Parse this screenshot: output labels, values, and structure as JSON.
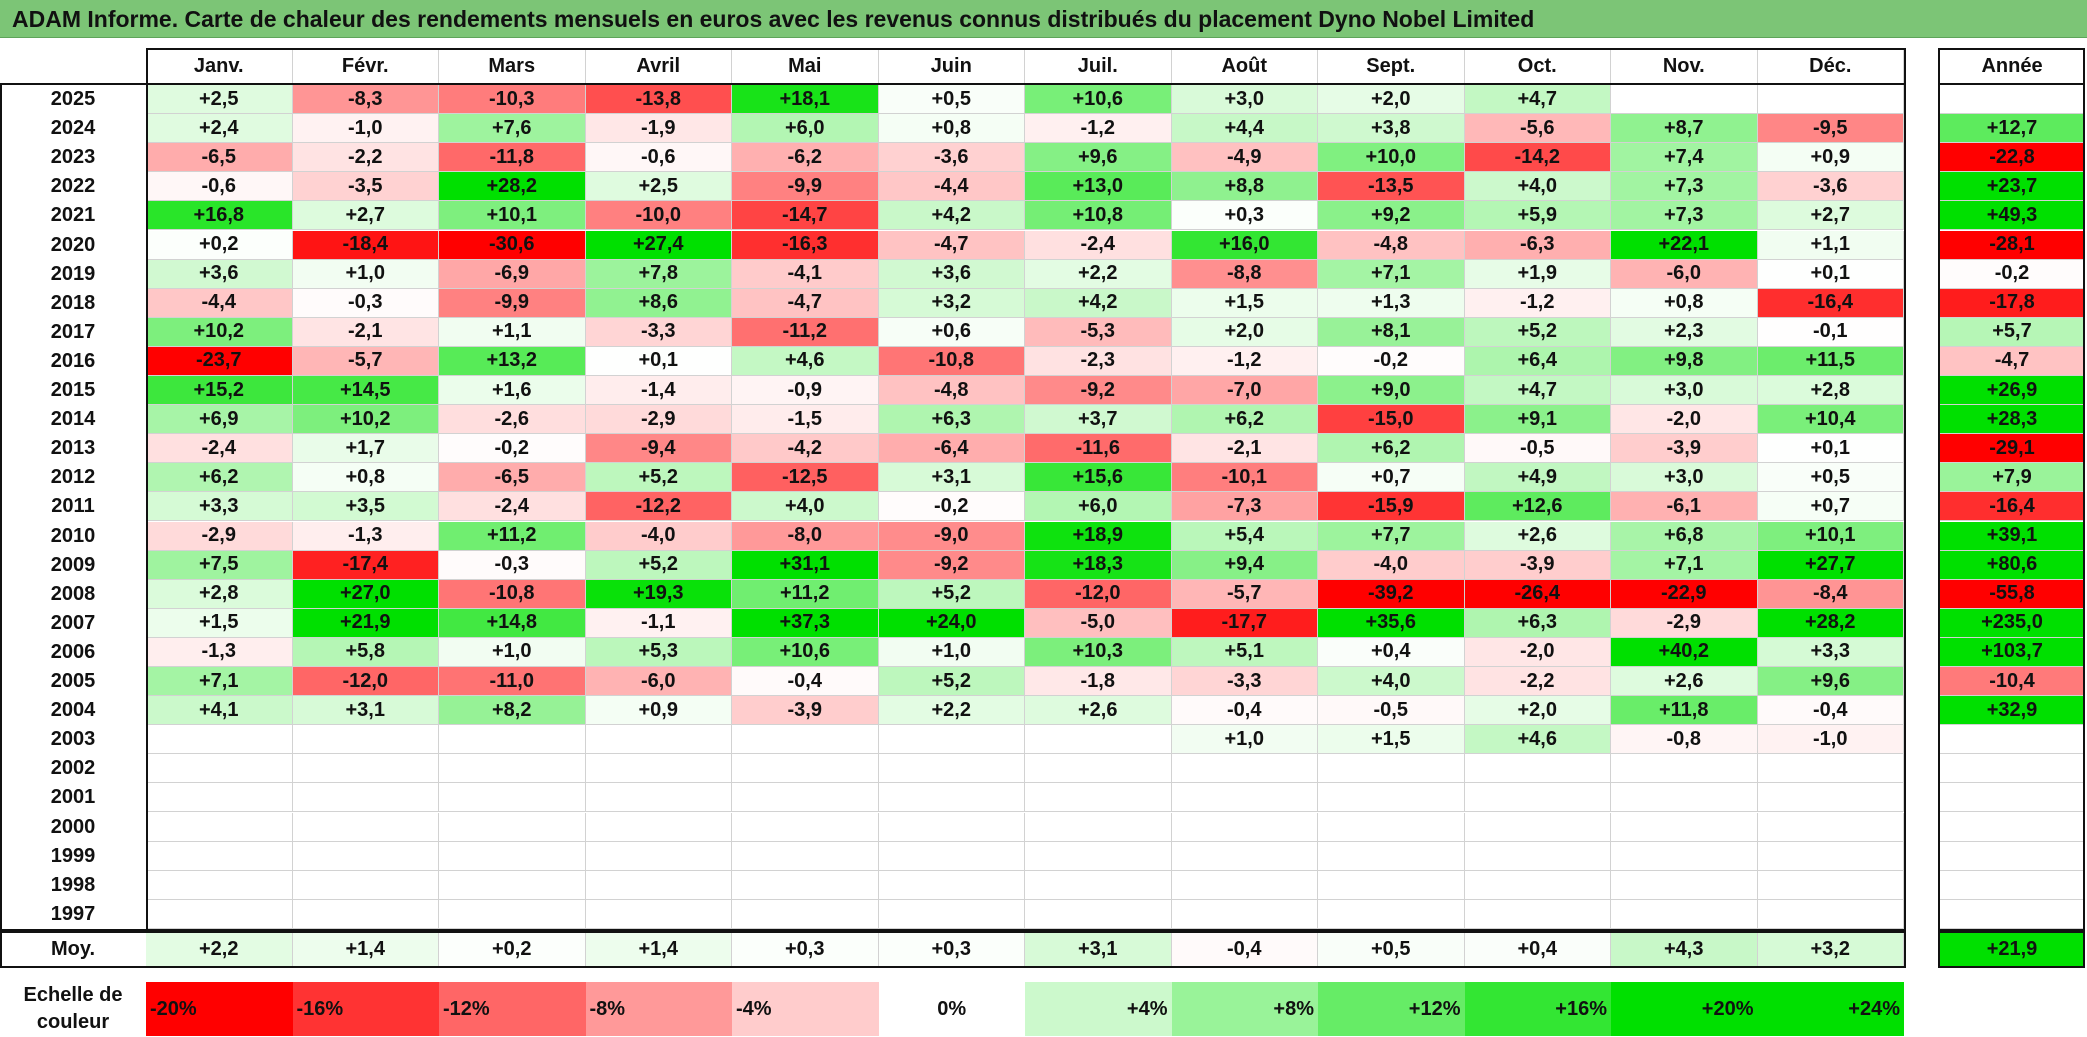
{
  "title": "ADAM Informe. Carte de chaleur des rendements mensuels en euros avec les revenus connus distribués du placement Dyno Nobel Limited",
  "months": [
    "Janv.",
    "Févr.",
    "Mars",
    "Avril",
    "Mai",
    "Juin",
    "Juil.",
    "Août",
    "Sept.",
    "Oct.",
    "Nov.",
    "Déc."
  ],
  "annual_header": "Année",
  "average_label": "Moy.",
  "scale_label": "Echelle de couleur",
  "colors": {
    "strong_red": "#ff0000",
    "strong_green": "#00e000",
    "neutral": "#ffffff",
    "title_bar": "#7cc576"
  },
  "scale": [
    {
      "label": "-20%",
      "value": -20,
      "align": "left"
    },
    {
      "label": "-16%",
      "value": -16,
      "align": "left"
    },
    {
      "label": "-12%",
      "value": -12,
      "align": "left"
    },
    {
      "label": "-8%",
      "value": -8,
      "align": "left"
    },
    {
      "label": "-4%",
      "value": -4,
      "align": "left"
    },
    {
      "label": "0%",
      "value": 0,
      "align": "center"
    },
    {
      "label": "+4%",
      "value": 4,
      "align": "right"
    },
    {
      "label": "+8%",
      "value": 8,
      "align": "right"
    },
    {
      "label": "+12%",
      "value": 12,
      "align": "right"
    },
    {
      "label": "+16%",
      "value": 16,
      "align": "right"
    },
    {
      "label": "+20%",
      "value": 20,
      "align": "right"
    },
    {
      "label": "+24%",
      "value": 24,
      "align": "right"
    }
  ],
  "chart_data": {
    "type": "heatmap",
    "title": "ADAM Informe. Carte de chaleur des rendements mensuels en euros avec les revenus connus distribués du placement Dyno Nobel Limited",
    "x": [
      "Janv.",
      "Févr.",
      "Mars",
      "Avril",
      "Mai",
      "Juin",
      "Juil.",
      "Août",
      "Sept.",
      "Oct.",
      "Nov.",
      "Déc."
    ],
    "rows": [
      {
        "year": "2025",
        "values": [
          "+2,5",
          "-8,3",
          "-10,3",
          "-13,8",
          "+18,1",
          "+0,5",
          "+10,6",
          "+3,0",
          "+2,0",
          "+4,7",
          "",
          ""
        ],
        "annual": ""
      },
      {
        "year": "2024",
        "values": [
          "+2,4",
          "-1,0",
          "+7,6",
          "-1,9",
          "+6,0",
          "+0,8",
          "-1,2",
          "+4,4",
          "+3,8",
          "-5,6",
          "+8,7",
          "-9,5"
        ],
        "annual": "+12,7"
      },
      {
        "year": "2023",
        "values": [
          "-6,5",
          "-2,2",
          "-11,8",
          "-0,6",
          "-6,2",
          "-3,6",
          "+9,6",
          "-4,9",
          "+10,0",
          "-14,2",
          "+7,4",
          "+0,9"
        ],
        "annual": "-22,8"
      },
      {
        "year": "2022",
        "values": [
          "-0,6",
          "-3,5",
          "+28,2",
          "+2,5",
          "-9,9",
          "-4,4",
          "+13,0",
          "+8,8",
          "-13,5",
          "+4,0",
          "+7,3",
          "-3,6"
        ],
        "annual": "+23,7"
      },
      {
        "year": "2021",
        "values": [
          "+16,8",
          "+2,7",
          "+10,1",
          "-10,0",
          "-14,7",
          "+4,2",
          "+10,8",
          "+0,3",
          "+9,2",
          "+5,9",
          "+7,3",
          "+2,7"
        ],
        "annual": "+49,3"
      },
      {
        "year": "2020",
        "values": [
          "+0,2",
          "-18,4",
          "-30,6",
          "+27,4",
          "-16,3",
          "-4,7",
          "-2,4",
          "+16,0",
          "-4,8",
          "-6,3",
          "+22,1",
          "+1,1"
        ],
        "annual": "-28,1"
      },
      {
        "year": "2019",
        "values": [
          "+3,6",
          "+1,0",
          "-6,9",
          "+7,8",
          "-4,1",
          "+3,6",
          "+2,2",
          "-8,8",
          "+7,1",
          "+1,9",
          "-6,0",
          "+0,1"
        ],
        "annual": "-0,2"
      },
      {
        "year": "2018",
        "values": [
          "-4,4",
          "-0,3",
          "-9,9",
          "+8,6",
          "-4,7",
          "+3,2",
          "+4,2",
          "+1,5",
          "+1,3",
          "-1,2",
          "+0,8",
          "-16,4"
        ],
        "annual": "-17,8"
      },
      {
        "year": "2017",
        "values": [
          "+10,2",
          "-2,1",
          "+1,1",
          "-3,3",
          "-11,2",
          "+0,6",
          "-5,3",
          "+2,0",
          "+8,1",
          "+5,2",
          "+2,3",
          "-0,1"
        ],
        "annual": "+5,7"
      },
      {
        "year": "2016",
        "values": [
          "-23,7",
          "-5,7",
          "+13,2",
          "+0,1",
          "+4,6",
          "-10,8",
          "-2,3",
          "-1,2",
          "-0,2",
          "+6,4",
          "+9,8",
          "+11,5"
        ],
        "annual": "-4,7"
      },
      {
        "year": "2015",
        "values": [
          "+15,2",
          "+14,5",
          "+1,6",
          "-1,4",
          "-0,9",
          "-4,8",
          "-9,2",
          "-7,0",
          "+9,0",
          "+4,7",
          "+3,0",
          "+2,8"
        ],
        "annual": "+26,9"
      },
      {
        "year": "2014",
        "values": [
          "+6,9",
          "+10,2",
          "-2,6",
          "-2,9",
          "-1,5",
          "+6,3",
          "+3,7",
          "+6,2",
          "-15,0",
          "+9,1",
          "-2,0",
          "+10,4"
        ],
        "annual": "+28,3"
      },
      {
        "year": "2013",
        "values": [
          "-2,4",
          "+1,7",
          "-0,2",
          "-9,4",
          "-4,2",
          "-6,4",
          "-11,6",
          "-2,1",
          "+6,2",
          "-0,5",
          "-3,9",
          "+0,1"
        ],
        "annual": "-29,1"
      },
      {
        "year": "2012",
        "values": [
          "+6,2",
          "+0,8",
          "-6,5",
          "+5,2",
          "-12,5",
          "+3,1",
          "+15,6",
          "-10,1",
          "+0,7",
          "+4,9",
          "+3,0",
          "+0,5"
        ],
        "annual": "+7,9"
      },
      {
        "year": "2011",
        "values": [
          "+3,3",
          "+3,5",
          "-2,4",
          "-12,2",
          "+4,0",
          "-0,2",
          "+6,0",
          "-7,3",
          "-15,9",
          "+12,6",
          "-6,1",
          "+0,7"
        ],
        "annual": "-16,4"
      },
      {
        "year": "2010",
        "values": [
          "-2,9",
          "-1,3",
          "+11,2",
          "-4,0",
          "-8,0",
          "-9,0",
          "+18,9",
          "+5,4",
          "+7,7",
          "+2,6",
          "+6,8",
          "+10,1"
        ],
        "annual": "+39,1"
      },
      {
        "year": "2009",
        "values": [
          "+7,5",
          "-17,4",
          "-0,3",
          "+5,2",
          "+31,1",
          "-9,2",
          "+18,3",
          "+9,4",
          "-4,0",
          "-3,9",
          "+7,1",
          "+27,7"
        ],
        "annual": "+80,6"
      },
      {
        "year": "2008",
        "values": [
          "+2,8",
          "+27,0",
          "-10,8",
          "+19,3",
          "+11,2",
          "+5,2",
          "-12,0",
          "-5,7",
          "-39,2",
          "-26,4",
          "-22,9",
          "-8,4"
        ],
        "annual": "-55,8"
      },
      {
        "year": "2007",
        "values": [
          "+1,5",
          "+21,9",
          "+14,8",
          "-1,1",
          "+37,3",
          "+24,0",
          "-5,0",
          "-17,7",
          "+35,6",
          "+6,3",
          "-2,9",
          "+28,2"
        ],
        "annual": "+235,0"
      },
      {
        "year": "2006",
        "values": [
          "-1,3",
          "+5,8",
          "+1,0",
          "+5,3",
          "+10,6",
          "+1,0",
          "+10,3",
          "+5,1",
          "+0,4",
          "-2,0",
          "+40,2",
          "+3,3"
        ],
        "annual": "+103,7"
      },
      {
        "year": "2005",
        "values": [
          "+7,1",
          "-12,0",
          "-11,0",
          "-6,0",
          "-0,4",
          "+5,2",
          "-1,8",
          "-3,3",
          "+4,0",
          "-2,2",
          "+2,6",
          "+9,6"
        ],
        "annual": "-10,4"
      },
      {
        "year": "2004",
        "values": [
          "+4,1",
          "+3,1",
          "+8,2",
          "+0,9",
          "-3,9",
          "+2,2",
          "+2,6",
          "-0,4",
          "-0,5",
          "+2,0",
          "+11,8",
          "-0,4"
        ],
        "annual": "+32,9"
      },
      {
        "year": "2003",
        "values": [
          "",
          "",
          "",
          "",
          "",
          "",
          "",
          "+1,0",
          "+1,5",
          "+4,6",
          "-0,8",
          "-1,0"
        ],
        "annual": ""
      },
      {
        "year": "2002",
        "values": [
          "",
          "",
          "",
          "",
          "",
          "",
          "",
          "",
          "",
          "",
          "",
          ""
        ],
        "annual": ""
      },
      {
        "year": "2001",
        "values": [
          "",
          "",
          "",
          "",
          "",
          "",
          "",
          "",
          "",
          "",
          "",
          ""
        ],
        "annual": ""
      },
      {
        "year": "2000",
        "values": [
          "",
          "",
          "",
          "",
          "",
          "",
          "",
          "",
          "",
          "",
          "",
          ""
        ],
        "annual": ""
      },
      {
        "year": "1999",
        "values": [
          "",
          "",
          "",
          "",
          "",
          "",
          "",
          "",
          "",
          "",
          "",
          ""
        ],
        "annual": ""
      },
      {
        "year": "1998",
        "values": [
          "",
          "",
          "",
          "",
          "",
          "",
          "",
          "",
          "",
          "",
          "",
          ""
        ],
        "annual": ""
      },
      {
        "year": "1997",
        "values": [
          "",
          "",
          "",
          "",
          "",
          "",
          "",
          "",
          "",
          "",
          "",
          ""
        ],
        "annual": ""
      }
    ],
    "average": {
      "label": "Moy.",
      "values": [
        "+2,2",
        "+1,4",
        "+0,2",
        "+1,4",
        "+0,3",
        "+0,3",
        "+3,1",
        "-0,4",
        "+0,5",
        "+0,4",
        "+4,3",
        "+3,2"
      ],
      "annual": "+21,9"
    }
  }
}
